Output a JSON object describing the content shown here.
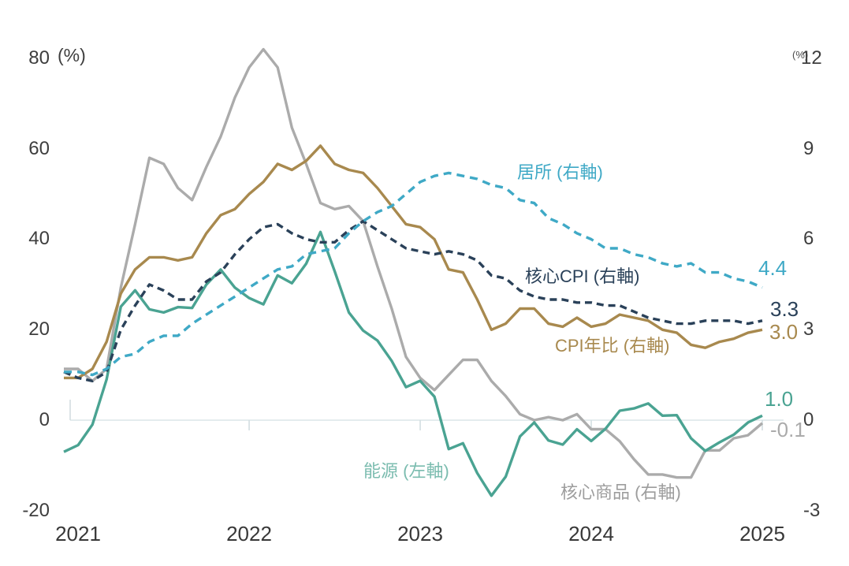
{
  "chart_data": {
    "type": "line",
    "title": "",
    "x_start": "2020-12",
    "x_end": "2025-01",
    "x_frequency": "monthly",
    "x_tick_labels": [
      "2021",
      "2022",
      "2023",
      "2024",
      "2025"
    ],
    "left_axis": {
      "unit": "(%)",
      "range": [
        -20,
        80
      ],
      "ticks": [
        "80",
        "60",
        "40",
        "20",
        "0",
        "-20"
      ]
    },
    "right_axis": {
      "unit": "(%)",
      "range": [
        -3,
        12
      ],
      "ticks": [
        "12",
        "9",
        "6",
        "3",
        "0",
        "-3"
      ]
    },
    "grid": "zero-line-only",
    "zero_line_color": "#dbe5e8",
    "series": [
      {
        "key": "core-goods",
        "name": "核心商品 (右軸)",
        "axis": "right",
        "style": "solid",
        "color": "#ababab",
        "label_color": "#9d9d9d",
        "end_label": "-0.1",
        "values": [
          1.7,
          1.7,
          1.3,
          1.7,
          4.4,
          6.5,
          8.7,
          8.5,
          7.7,
          7.3,
          8.4,
          9.4,
          10.7,
          11.7,
          12.3,
          11.7,
          9.7,
          8.5,
          7.2,
          7.0,
          7.1,
          6.6,
          5.1,
          3.7,
          2.1,
          1.4,
          1.0,
          1.5,
          2.0,
          2.0,
          1.3,
          0.8,
          0.2,
          0.0,
          0.1,
          0.0,
          0.2,
          -0.3,
          -0.3,
          -0.7,
          -1.3,
          -1.8,
          -1.8,
          -1.9,
          -1.9,
          -1.0,
          -1.0,
          -0.6,
          -0.5,
          -0.1
        ]
      },
      {
        "key": "cpi-yoy",
        "name": "CPI年比 (右軸)",
        "axis": "right",
        "style": "solid",
        "color": "#a8894e",
        "label_color": "#a8894e",
        "end_label": "3.0",
        "values": [
          1.4,
          1.4,
          1.7,
          2.6,
          4.2,
          5.0,
          5.4,
          5.4,
          5.3,
          5.4,
          6.2,
          6.8,
          7.0,
          7.5,
          7.9,
          8.5,
          8.3,
          8.6,
          9.1,
          8.5,
          8.3,
          8.2,
          7.7,
          7.1,
          6.5,
          6.4,
          6.0,
          5.0,
          4.9,
          4.0,
          3.0,
          3.2,
          3.7,
          3.7,
          3.2,
          3.1,
          3.4,
          3.1,
          3.2,
          3.5,
          3.4,
          3.3,
          3.0,
          2.9,
          2.5,
          2.4,
          2.6,
          2.7,
          2.9,
          3.0
        ]
      },
      {
        "key": "energy",
        "name": "能源 (左軸)",
        "axis": "left",
        "style": "solid",
        "color": "#4aa392",
        "label_color": "#7bbcaf",
        "end_label": "1.0",
        "values": [
          -7.0,
          -5.5,
          -1.0,
          9.0,
          25.1,
          28.7,
          24.5,
          23.8,
          25.0,
          24.8,
          30.0,
          33.3,
          29.3,
          27.0,
          25.6,
          32.0,
          30.3,
          34.6,
          41.6,
          32.9,
          23.8,
          19.8,
          17.6,
          13.1,
          7.3,
          8.7,
          5.2,
          -6.4,
          -5.1,
          -11.7,
          -16.7,
          -12.5,
          -3.6,
          -0.5,
          -4.5,
          -5.4,
          -2.0,
          -4.6,
          -1.9,
          2.1,
          2.6,
          3.7,
          1.0,
          1.1,
          -4.0,
          -6.8,
          -4.9,
          -3.2,
          -0.5,
          1.0
        ]
      },
      {
        "key": "core-cpi",
        "name": "核心CPI (右軸)",
        "axis": "right",
        "style": "dashed",
        "dash": "9 6",
        "color": "#2a4159",
        "label_color": "#2a4159",
        "end_label": "3.3",
        "values": [
          1.6,
          1.4,
          1.3,
          1.6,
          3.0,
          3.8,
          4.5,
          4.3,
          4.0,
          4.0,
          4.6,
          4.9,
          5.5,
          6.0,
          6.4,
          6.5,
          6.2,
          6.0,
          5.9,
          5.9,
          6.3,
          6.6,
          6.3,
          6.0,
          5.7,
          5.6,
          5.5,
          5.6,
          5.5,
          5.3,
          4.8,
          4.7,
          4.3,
          4.1,
          4.0,
          4.0,
          3.9,
          3.9,
          3.8,
          3.8,
          3.6,
          3.4,
          3.3,
          3.2,
          3.2,
          3.3,
          3.3,
          3.3,
          3.2,
          3.3
        ]
      },
      {
        "key": "shelter",
        "name": "居所 (右軸)",
        "axis": "right",
        "style": "dashed",
        "dash": "10 7",
        "color": "#3fa9c6",
        "label_color": "#3fa9c6",
        "end_label": "4.4",
        "values": [
          1.6,
          1.6,
          1.5,
          1.7,
          2.1,
          2.2,
          2.6,
          2.8,
          2.8,
          3.2,
          3.5,
          3.8,
          4.1,
          4.4,
          4.7,
          5.0,
          5.1,
          5.5,
          5.6,
          5.7,
          6.2,
          6.6,
          6.9,
          7.1,
          7.5,
          7.9,
          8.1,
          8.2,
          8.1,
          8.0,
          7.8,
          7.7,
          7.3,
          7.2,
          6.7,
          6.5,
          6.2,
          6.0,
          5.7,
          5.7,
          5.5,
          5.4,
          5.2,
          5.1,
          5.2,
          4.9,
          4.9,
          4.7,
          4.6,
          4.4
        ]
      }
    ]
  }
}
